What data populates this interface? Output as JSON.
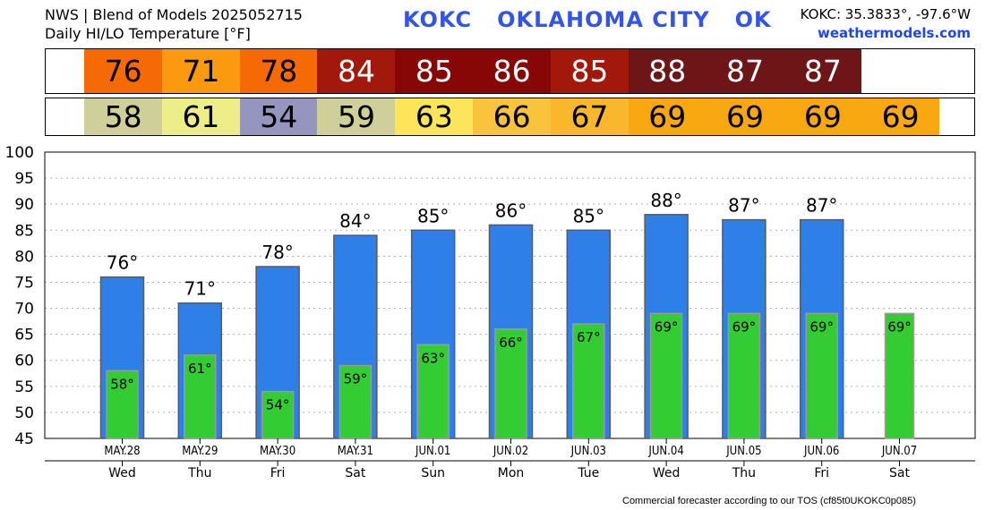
{
  "header": {
    "line1": "NWS | Blend of Models 2025052715",
    "line2": "Daily HI/LO Temperature [°F]",
    "station_title": "KOKC   OKLAHOMA CITY   OK",
    "coords": "KOKC: 35.3833°, -97.6°W",
    "site": "weathermodels.com"
  },
  "footer": {
    "text": "Commercial forecaster according to our TOS (cf85t0UKOKC0p085)"
  },
  "colors": {
    "hi_bar": "#2f7fe8",
    "lo_bar": "#33cc33",
    "grid": "#b0b0b0"
  },
  "hi_strip": [
    {
      "value": "76",
      "bg": "#f66a06",
      "fg": "#000000"
    },
    {
      "value": "71",
      "bg": "#fb9a0e",
      "fg": "#000000"
    },
    {
      "value": "78",
      "bg": "#f66a06",
      "fg": "#000000"
    },
    {
      "value": "84",
      "bg": "#a2190c",
      "fg": "#ffffff"
    },
    {
      "value": "85",
      "bg": "#870707",
      "fg": "#ffffff"
    },
    {
      "value": "86",
      "bg": "#870707",
      "fg": "#ffffff"
    },
    {
      "value": "85",
      "bg": "#a2190c",
      "fg": "#ffffff"
    },
    {
      "value": "88",
      "bg": "#6e1517",
      "fg": "#ffffff"
    },
    {
      "value": "87",
      "bg": "#6e1517",
      "fg": "#ffffff"
    },
    {
      "value": "87",
      "bg": "#6e1517",
      "fg": "#ffffff"
    }
  ],
  "lo_strip": [
    {
      "value": "58",
      "bg": "#cfcf9a",
      "fg": "#000000"
    },
    {
      "value": "61",
      "bg": "#eeee88",
      "fg": "#000000"
    },
    {
      "value": "54",
      "bg": "#9595c0",
      "fg": "#000000"
    },
    {
      "value": "59",
      "bg": "#cfcf9a",
      "fg": "#000000"
    },
    {
      "value": "63",
      "bg": "#fde55a",
      "fg": "#000000"
    },
    {
      "value": "66",
      "bg": "#f9c43c",
      "fg": "#000000"
    },
    {
      "value": "67",
      "bg": "#f9b82c",
      "fg": "#000000"
    },
    {
      "value": "69",
      "bg": "#f9a812",
      "fg": "#000000"
    },
    {
      "value": "69",
      "bg": "#f9a812",
      "fg": "#000000"
    },
    {
      "value": "69",
      "bg": "#f9a812",
      "fg": "#000000"
    },
    {
      "value": "69",
      "bg": "#f9a812",
      "fg": "#000000"
    }
  ],
  "chart_data": {
    "type": "bar",
    "ylim": [
      45,
      100
    ],
    "yticks": [
      45,
      50,
      55,
      60,
      65,
      70,
      75,
      80,
      85,
      90,
      95,
      100
    ],
    "grid": "horizontal dotted",
    "dates": [
      "MAY.28",
      "MAY.29",
      "MAY.30",
      "MAY.31",
      "JUN.01",
      "JUN.02",
      "JUN.03",
      "JUN.04",
      "JUN.05",
      "JUN.06",
      "JUN.07"
    ],
    "weekdays": [
      "Wed",
      "Thu",
      "Fri",
      "Sat",
      "Sun",
      "Mon",
      "Tue",
      "Wed",
      "Thu",
      "Fri",
      "Sat"
    ],
    "series": [
      {
        "values": [
          76,
          71,
          78,
          84,
          85,
          86,
          85,
          88,
          87,
          87,
          null
        ],
        "labels": [
          "76°",
          "71°",
          "78°",
          "84°",
          "85°",
          "86°",
          "85°",
          "88°",
          "87°",
          "87°",
          ""
        ]
      },
      {
        "values": [
          58,
          61,
          54,
          59,
          63,
          66,
          67,
          69,
          69,
          69,
          69
        ],
        "labels": [
          "58°",
          "61°",
          "54°",
          "59°",
          "63°",
          "66°",
          "67°",
          "69°",
          "69°",
          "69°",
          "69°"
        ]
      }
    ]
  }
}
